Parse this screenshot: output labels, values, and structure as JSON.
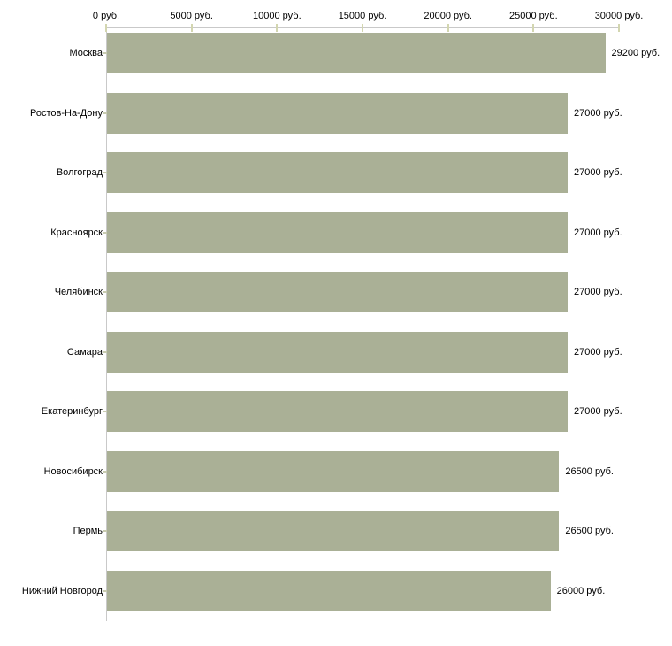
{
  "chart_data": {
    "type": "bar",
    "orientation": "horizontal",
    "title": "",
    "xlabel": "",
    "ylabel": "",
    "unit": "руб.",
    "xlim": [
      0,
      30000
    ],
    "grid": false,
    "legend": false,
    "categories": [
      "Москва",
      "Ростов-На-Дону",
      "Волгоград",
      "Красноярск",
      "Челябинск",
      "Самара",
      "Екатеринбург",
      "Новосибирск",
      "Пермь",
      "Нижний Новгород"
    ],
    "values": [
      29200,
      27000,
      27000,
      27000,
      27000,
      27000,
      27000,
      26500,
      26500,
      26000
    ],
    "value_labels": [
      "29200 руб.",
      "27000 руб.",
      "27000 руб.",
      "27000 руб.",
      "27000 руб.",
      "27000 руб.",
      "27000 руб.",
      "26500 руб.",
      "26500 руб.",
      "26000 руб."
    ],
    "x_axis": {
      "tick_values": [
        0,
        5000,
        10000,
        15000,
        20000,
        25000,
        30000
      ],
      "tick_labels": [
        "0 руб.",
        "5000 руб.",
        "10000 руб.",
        "15000 руб.",
        "20000 руб.",
        "25000 руб.",
        "30000 руб."
      ]
    },
    "colors": {
      "bar": "#aab096",
      "axis_line": "#c9c9c9",
      "tick_mark": "#d3d6b0",
      "category_tick": "#c8cbb0",
      "text": "#000000",
      "background": "#ffffff"
    }
  }
}
